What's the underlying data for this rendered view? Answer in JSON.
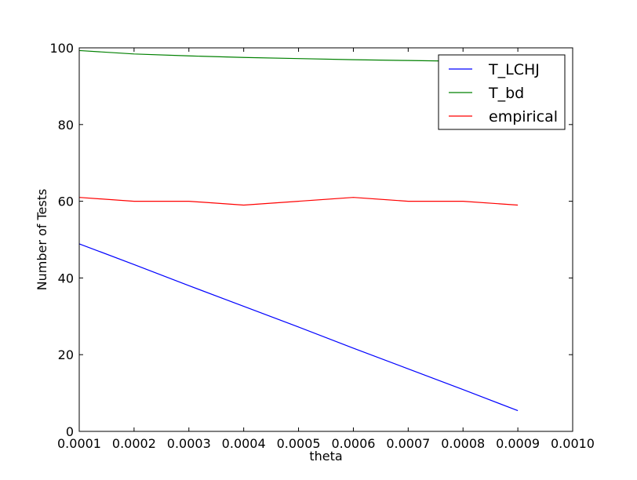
{
  "chart_data": {
    "type": "line",
    "title": "",
    "xlabel": "theta",
    "ylabel": "Number of Tests",
    "xlim": [
      0.0001,
      0.001
    ],
    "ylim": [
      0,
      100
    ],
    "xticks": [
      "0.0001",
      "0.0002",
      "0.0003",
      "0.0004",
      "0.0005",
      "0.0006",
      "0.0007",
      "0.0008",
      "0.0009",
      "0.0010"
    ],
    "yticks": [
      "0",
      "20",
      "40",
      "60",
      "80",
      "100"
    ],
    "grid": false,
    "legend_position": "top-right",
    "series": [
      {
        "name": "T_LCHJ",
        "color": "#0000ff",
        "x": [
          0.0001,
          0.0002,
          0.0003,
          0.0004,
          0.0005,
          0.0006,
          0.0007,
          0.0008,
          0.0009
        ],
        "y": [
          48.9,
          43.5,
          38.0,
          32.6,
          27.2,
          21.7,
          16.3,
          10.9,
          5.4
        ]
      },
      {
        "name": "T_bd",
        "color": "#008000",
        "x": [
          0.0001,
          0.0002,
          0.0003,
          0.0004,
          0.0005,
          0.0006,
          0.0007,
          0.0008,
          0.0009
        ],
        "y": [
          99.3,
          98.4,
          97.9,
          97.5,
          97.2,
          96.9,
          96.7,
          96.5,
          96.3
        ]
      },
      {
        "name": "empirical",
        "color": "#ff0000",
        "x": [
          0.0001,
          0.0002,
          0.0003,
          0.0004,
          0.0005,
          0.0006,
          0.0007,
          0.0008,
          0.0009
        ],
        "y": [
          61,
          60,
          60,
          59,
          60,
          61,
          60,
          60,
          59
        ]
      }
    ]
  }
}
